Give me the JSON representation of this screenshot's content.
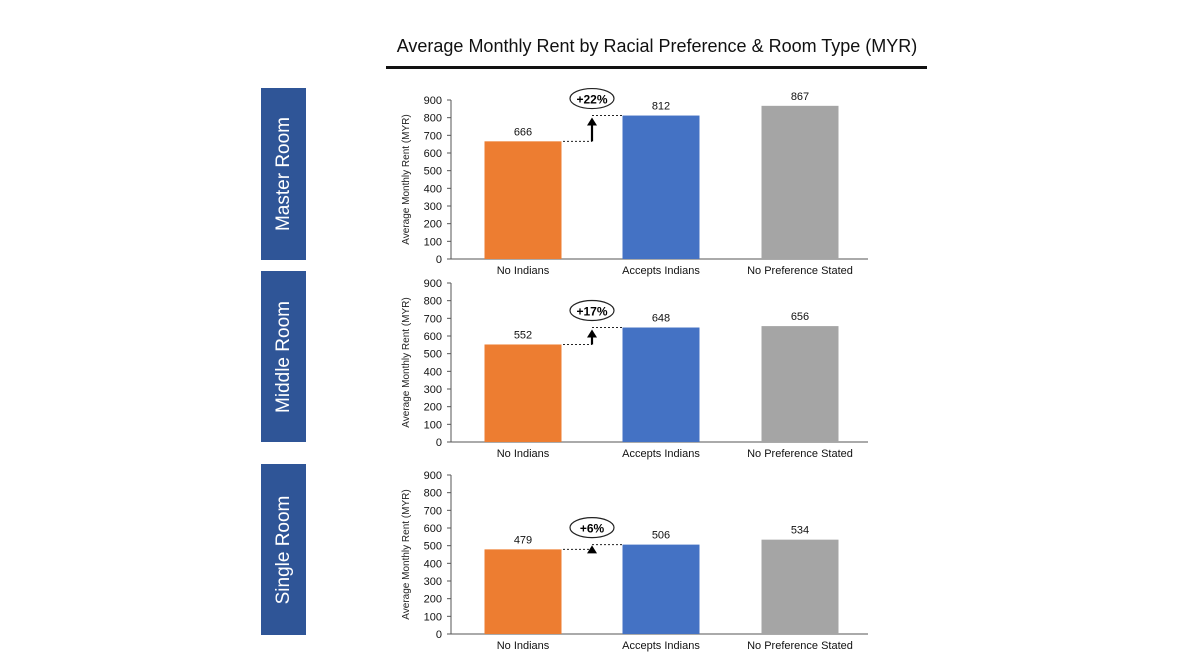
{
  "title": "Average Monthly Rent by Racial Preference & Room Type (MYR)",
  "colors": {
    "no_indians": "#ed7d31",
    "accepts_indians": "#4472c4",
    "no_preference": "#a5a5a5",
    "panel_label_bg": "#2f5597",
    "title_rule": "#111111"
  },
  "panels": [
    {
      "label": "Master Room"
    },
    {
      "label": "Middle Room"
    },
    {
      "label": "Single Room"
    }
  ],
  "chart_data": [
    {
      "type": "bar",
      "panel": "Master Room",
      "categories": [
        "No Indians",
        "Accepts Indians",
        "No Preference Stated"
      ],
      "values": [
        666,
        812,
        867
      ],
      "ylabel": "Average Monthly Rent (MYR)",
      "ylim": [
        0,
        900
      ],
      "yticks": [
        0,
        100,
        200,
        300,
        400,
        500,
        600,
        700,
        800,
        900
      ],
      "annotation": "+22%",
      "grid": false
    },
    {
      "type": "bar",
      "panel": "Middle Room",
      "categories": [
        "No Indians",
        "Accepts Indians",
        "No Preference Stated"
      ],
      "values": [
        552,
        648,
        656
      ],
      "ylabel": "Average Monthly Rent (MYR)",
      "ylim": [
        0,
        900
      ],
      "yticks": [
        0,
        100,
        200,
        300,
        400,
        500,
        600,
        700,
        800,
        900
      ],
      "annotation": "+17%",
      "grid": false
    },
    {
      "type": "bar",
      "panel": "Single Room",
      "categories": [
        "No Indians",
        "Accepts Indians",
        "No Preference Stated"
      ],
      "values": [
        479,
        506,
        534
      ],
      "ylabel": "Average Monthly Rent (MYR)",
      "ylim": [
        0,
        900
      ],
      "yticks": [
        0,
        100,
        200,
        300,
        400,
        500,
        600,
        700,
        800,
        900
      ],
      "annotation": "+6%",
      "grid": false
    }
  ]
}
